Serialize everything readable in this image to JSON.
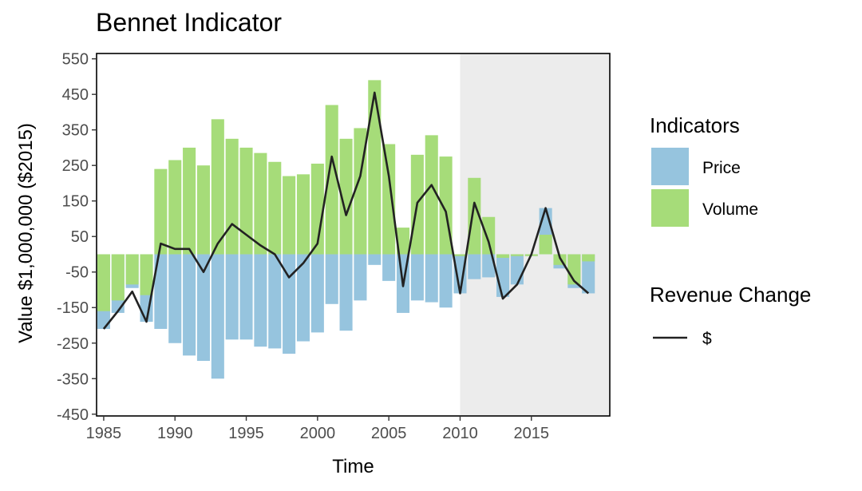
{
  "chart_data": {
    "type": "bar",
    "title": "Bennet Indicator",
    "xlabel": "Time",
    "ylabel": "Value $1,000,000 ($2015)",
    "x_ticks": [
      "1985",
      "1990",
      "1995",
      "2000",
      "2005",
      "2010",
      "2015"
    ],
    "y_ticks": [
      "550",
      "450",
      "350",
      "250",
      "150",
      "50",
      "-50",
      "-150",
      "-250",
      "-350",
      "-450"
    ],
    "ylim": [
      -455,
      565
    ],
    "xlim": [
      1984.5,
      2020.5
    ],
    "shaded_region": {
      "from": 2010,
      "to": 2020.5,
      "color": "#ececec"
    },
    "years": [
      1985,
      1986,
      1987,
      1988,
      1989,
      1990,
      1991,
      1992,
      1993,
      1994,
      1995,
      1996,
      1997,
      1998,
      1999,
      2000,
      2001,
      2002,
      2003,
      2004,
      2005,
      2006,
      2007,
      2008,
      2009,
      2010,
      2011,
      2012,
      2013,
      2014,
      2015,
      2016,
      2017,
      2018,
      2019
    ],
    "series": [
      {
        "name": "Price",
        "color": "#96c4de",
        "values": [
          -210,
          -165,
          -95,
          -190,
          -210,
          -250,
          -285,
          -300,
          -350,
          -240,
          -240,
          -260,
          -265,
          -280,
          -245,
          -220,
          -140,
          -215,
          -130,
          -30,
          -75,
          -165,
          -130,
          -135,
          -150,
          -110,
          -70,
          -65,
          -120,
          -85,
          -5,
          130,
          -40,
          -95,
          -110
        ]
      },
      {
        "name": "Volume",
        "color": "#a6dc79",
        "values": [
          -160,
          -130,
          -85,
          -115,
          240,
          265,
          300,
          250,
          380,
          325,
          300,
          285,
          260,
          220,
          225,
          255,
          420,
          325,
          355,
          490,
          310,
          75,
          280,
          335,
          275,
          -5,
          215,
          105,
          -10,
          -5,
          -5,
          55,
          -30,
          -85,
          -20
        ]
      },
      {
        "name": "$",
        "color": "#222222",
        "kind": "line",
        "values": [
          -210,
          -160,
          -105,
          -190,
          30,
          15,
          15,
          -50,
          30,
          85,
          55,
          25,
          0,
          -65,
          -25,
          30,
          275,
          110,
          220,
          455,
          220,
          -90,
          145,
          195,
          120,
          -110,
          145,
          35,
          -125,
          -85,
          0,
          130,
          -10,
          -75,
          -110
        ]
      }
    ]
  },
  "legend": {
    "fill_title": "Indicators",
    "fill_items": [
      {
        "label": "Price",
        "color": "#96c4de"
      },
      {
        "label": "Volume",
        "color": "#a6dc79"
      }
    ],
    "line_title": "Revenue Change",
    "line_items": [
      {
        "label": "$",
        "color": "#222222"
      }
    ]
  }
}
